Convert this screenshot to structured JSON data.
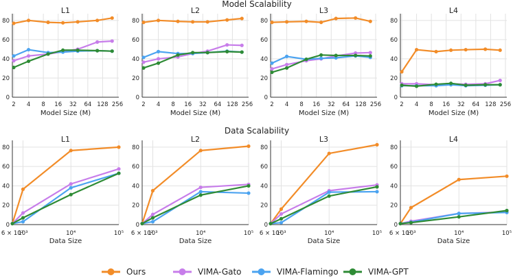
{
  "colors": {
    "ours": "#f28c28",
    "gato": "#c77dea",
    "flamingo": "#4ba3f0",
    "gpt": "#2e8b35",
    "grid": "#e2e2e2",
    "axis": "#333333"
  },
  "sections": {
    "model": {
      "title": "Model Scalability",
      "xlabel": "Model Size (M)"
    },
    "data": {
      "title": "Data Scalability",
      "xlabel": "Data Size"
    }
  },
  "legend": [
    {
      "key": "ours",
      "label": "Ours"
    },
    {
      "key": "gato",
      "label": "VIMA-Gato"
    },
    {
      "key": "flamingo",
      "label": "VIMA-Flamingo"
    },
    {
      "key": "gpt",
      "label": "VIMA-GPT"
    }
  ],
  "chart_data": [
    {
      "type": "line",
      "section": "model",
      "title": "L1",
      "x_ticks": [
        "2",
        "4",
        "8",
        "16",
        "32",
        "64",
        "128",
        "256"
      ],
      "y_ticks": [
        "0",
        "20",
        "40",
        "60",
        "80"
      ],
      "ylim": [
        0,
        87
      ],
      "series": [
        {
          "key": "ours",
          "name": "Ours",
          "values": [
            77,
            80,
            78,
            77.5,
            78.5,
            80,
            82.5
          ]
        },
        {
          "key": "gato",
          "name": "VIMA-Gato",
          "values": [
            38,
            43,
            45,
            47.5,
            50,
            57.5,
            58.5
          ]
        },
        {
          "key": "flamingo",
          "name": "VIMA-Flamingo",
          "values": [
            43,
            49.5,
            46.5,
            47,
            48,
            48.5,
            48
          ]
        },
        {
          "key": "gpt",
          "name": "VIMA-GPT",
          "values": [
            31,
            37.5,
            45,
            49,
            49,
            48.5,
            48
          ]
        }
      ]
    },
    {
      "type": "line",
      "section": "model",
      "title": "L2",
      "x_ticks": [
        "2",
        "4",
        "8",
        "16",
        "32",
        "64",
        "128",
        "256"
      ],
      "y_ticks": [
        "0",
        "20",
        "40",
        "60",
        "80"
      ],
      "ylim": [
        0,
        87
      ],
      "series": [
        {
          "key": "ours",
          "name": "Ours",
          "values": [
            78,
            80,
            79,
            78.5,
            78.5,
            80.5,
            82
          ]
        },
        {
          "key": "gato",
          "name": "VIMA-Gato",
          "values": [
            36.5,
            40,
            42,
            45.5,
            48,
            54.5,
            54
          ]
        },
        {
          "key": "flamingo",
          "name": "VIMA-Flamingo",
          "values": [
            41.5,
            47.5,
            45.5,
            45.5,
            46.5,
            48,
            47
          ]
        },
        {
          "key": "gpt",
          "name": "VIMA-GPT",
          "values": [
            30.5,
            35.5,
            44,
            46.5,
            46.5,
            47.5,
            47
          ]
        }
      ]
    },
    {
      "type": "line",
      "section": "model",
      "title": "L3",
      "x_ticks": [
        "2",
        "4",
        "8",
        "16",
        "32",
        "64",
        "128",
        "256"
      ],
      "y_ticks": [
        "0",
        "20",
        "40",
        "60",
        "80"
      ],
      "ylim": [
        0,
        87
      ],
      "series": [
        {
          "key": "ours",
          "name": "Ours",
          "values": [
            78,
            78.5,
            79,
            78,
            82,
            82.5,
            79
          ]
        },
        {
          "key": "gato",
          "name": "VIMA-Gato",
          "values": [
            29.5,
            34,
            38,
            40,
            43,
            46,
            46.5
          ]
        },
        {
          "key": "flamingo",
          "name": "VIMA-Flamingo",
          "values": [
            35.5,
            42.5,
            39.5,
            40.5,
            41,
            43,
            41.5
          ]
        },
        {
          "key": "gpt",
          "name": "VIMA-GPT",
          "values": [
            26,
            30.5,
            39.5,
            44,
            43.5,
            43.5,
            43
          ]
        }
      ]
    },
    {
      "type": "line",
      "section": "model",
      "title": "L4",
      "x_ticks": [
        "2",
        "4",
        "8",
        "16",
        "32",
        "64",
        "128",
        "256"
      ],
      "y_ticks": [
        "0",
        "20",
        "40",
        "60",
        "80"
      ],
      "ylim": [
        0,
        87
      ],
      "series": [
        {
          "key": "ours",
          "name": "Ours",
          "values": [
            26.5,
            49.5,
            47.5,
            49,
            49.5,
            50,
            49
          ]
        },
        {
          "key": "gato",
          "name": "VIMA-Gato",
          "values": [
            14,
            14,
            13,
            14,
            13.5,
            14,
            17.5
          ]
        },
        {
          "key": "flamingo",
          "name": "VIMA-Flamingo",
          "values": [
            12,
            12,
            12,
            13,
            12,
            12.5,
            13
          ]
        },
        {
          "key": "gpt",
          "name": "VIMA-GPT",
          "values": [
            12.5,
            11.5,
            13.5,
            14.5,
            12.5,
            13,
            13
          ]
        }
      ]
    },
    {
      "type": "line",
      "section": "data",
      "title": "L1",
      "x_ticks": [
        "6 × 10²",
        "10³",
        "10⁴",
        "10⁵"
      ],
      "y_ticks": [
        "0",
        "20",
        "40",
        "60",
        "80"
      ],
      "ylim": [
        0,
        87
      ],
      "series": [
        {
          "key": "ours",
          "name": "Ours",
          "values": [
            1,
            36.5,
            76.5,
            80
          ]
        },
        {
          "key": "gato",
          "name": "VIMA-Gato",
          "values": [
            1,
            12,
            42,
            57.5
          ]
        },
        {
          "key": "flamingo",
          "name": "VIMA-Flamingo",
          "values": [
            1,
            3,
            38,
            53
          ]
        },
        {
          "key": "gpt",
          "name": "VIMA-GPT",
          "values": [
            1,
            7,
            31,
            53
          ]
        }
      ]
    },
    {
      "type": "line",
      "section": "data",
      "title": "L2",
      "x_ticks": [
        "6 × 10²",
        "10³",
        "10⁴",
        "10⁵"
      ],
      "y_ticks": [
        "0",
        "20",
        "40",
        "60",
        "80"
      ],
      "ylim": [
        0,
        87
      ],
      "series": [
        {
          "key": "ours",
          "name": "Ours",
          "values": [
            1,
            35,
            76.5,
            81
          ]
        },
        {
          "key": "gato",
          "name": "VIMA-Gato",
          "values": [
            1,
            10.5,
            38.5,
            41.5
          ]
        },
        {
          "key": "flamingo",
          "name": "VIMA-Flamingo",
          "values": [
            1,
            3,
            34,
            32.5
          ]
        },
        {
          "key": "gpt",
          "name": "VIMA-GPT",
          "values": [
            1,
            7,
            30.5,
            40
          ]
        }
      ]
    },
    {
      "type": "line",
      "section": "data",
      "title": "L3",
      "x_ticks": [
        "6 × 10²",
        "10³",
        "10⁴",
        "10⁵"
      ],
      "y_ticks": [
        "0",
        "20",
        "40",
        "60",
        "80"
      ],
      "ylim": [
        0,
        87
      ],
      "series": [
        {
          "key": "ours",
          "name": "Ours",
          "values": [
            1,
            16,
            73.5,
            82.5
          ]
        },
        {
          "key": "gato",
          "name": "VIMA-Gato",
          "values": [
            1,
            11,
            35,
            41
          ]
        },
        {
          "key": "flamingo",
          "name": "VIMA-Flamingo",
          "values": [
            1,
            2,
            33.5,
            34
          ]
        },
        {
          "key": "gpt",
          "name": "VIMA-GPT",
          "values": [
            1,
            6,
            29.5,
            39
          ]
        }
      ]
    },
    {
      "type": "line",
      "section": "data",
      "title": "L4",
      "x_ticks": [
        "6 × 10²",
        "10³",
        "10⁴",
        "10⁵"
      ],
      "y_ticks": [
        "0",
        "20",
        "40",
        "60",
        "80"
      ],
      "ylim": [
        0,
        87
      ],
      "series": [
        {
          "key": "ours",
          "name": "Ours",
          "values": [
            1,
            17.5,
            46.5,
            50
          ]
        },
        {
          "key": "gato",
          "name": "VIMA-Gato",
          "values": [
            1,
            3.5,
            11.5,
            13
          ]
        },
        {
          "key": "flamingo",
          "name": "VIMA-Flamingo",
          "values": [
            1,
            2.5,
            11.5,
            12.5
          ]
        },
        {
          "key": "gpt",
          "name": "VIMA-GPT",
          "values": [
            1,
            2,
            8,
            14.5
          ]
        }
      ]
    }
  ]
}
